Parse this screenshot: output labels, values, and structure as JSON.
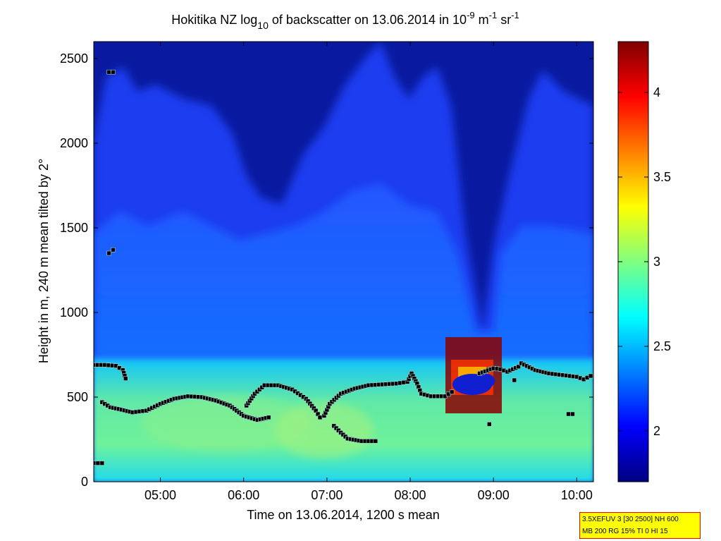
{
  "chart_data": {
    "type": "heatmap",
    "title": {
      "part1": "Hokitika NZ log",
      "sub": "10",
      "part2": " of backscatter on 13.06.2014 in 10",
      "sup1": "-9",
      "part3": " m",
      "sup2": "-1",
      "part4": " sr",
      "sup3": "-1"
    },
    "xlabel": "Time on 13.06.2014, 1200 s mean",
    "ylabel": "Height in m, 240 m mean tilted by 2°",
    "x_ticks": [
      "05:00",
      "06:00",
      "07:00",
      "08:00",
      "09:00",
      "10:00"
    ],
    "y_ticks": [
      "0",
      "500",
      "1000",
      "1500",
      "2000",
      "2500"
    ],
    "xlim": [
      "04:12",
      "10:12"
    ],
    "ylim": [
      0,
      2600
    ],
    "colorbar": {
      "ticks": [
        "2",
        "2.5",
        "3",
        "3.5",
        "4"
      ],
      "range": [
        1.7,
        4.3
      ],
      "colormap": "jet"
    },
    "annotations": [
      "3.5XEFUV 3 [30 2500] NH 600",
      "MB 200 RG 15% TI 0 HI 15"
    ],
    "series": [
      {
        "marker": "square",
        "points": [
          [
            "04:12",
            690
          ],
          [
            "04:20",
            690
          ],
          [
            "04:28",
            685
          ],
          [
            "04:33",
            660
          ],
          [
            "04:35",
            610
          ],
          [
            "04:18",
            470
          ],
          [
            "04:24",
            440
          ],
          [
            "04:30",
            430
          ],
          [
            "04:40",
            410
          ],
          [
            "04:50",
            420
          ],
          [
            "05:00",
            460
          ],
          [
            "05:10",
            490
          ],
          [
            "05:20",
            505
          ],
          [
            "05:30",
            500
          ],
          [
            "05:40",
            480
          ],
          [
            "05:50",
            450
          ],
          [
            "06:00",
            390
          ],
          [
            "06:10",
            365
          ],
          [
            "06:18",
            380
          ],
          [
            "06:02",
            450
          ],
          [
            "06:08",
            520
          ],
          [
            "06:15",
            570
          ],
          [
            "06:25",
            570
          ],
          [
            "06:35",
            545
          ],
          [
            "06:45",
            490
          ],
          [
            "06:52",
            420
          ],
          [
            "06:55",
            380
          ],
          [
            "06:58",
            390
          ],
          [
            "07:02",
            460
          ],
          [
            "07:10",
            520
          ],
          [
            "07:20",
            550
          ],
          [
            "07:30",
            570
          ],
          [
            "07:40",
            575
          ],
          [
            "07:50",
            580
          ],
          [
            "07:58",
            590
          ],
          [
            "08:01",
            640
          ],
          [
            "08:05",
            580
          ],
          [
            "08:08",
            520
          ],
          [
            "08:15",
            505
          ],
          [
            "08:25",
            505
          ],
          [
            "08:30",
            530
          ],
          [
            "07:05",
            330
          ],
          [
            "07:10",
            290
          ],
          [
            "07:15",
            255
          ],
          [
            "07:25",
            240
          ],
          [
            "07:35",
            240
          ],
          [
            "08:50",
            640
          ],
          [
            "09:00",
            670
          ],
          [
            "09:05",
            665
          ],
          [
            "09:10",
            650
          ],
          [
            "09:18",
            680
          ],
          [
            "09:20",
            700
          ],
          [
            "09:30",
            660
          ],
          [
            "09:40",
            640
          ],
          [
            "09:50",
            630
          ],
          [
            "10:00",
            620
          ],
          [
            "10:05",
            605
          ],
          [
            "10:10",
            625
          ],
          [
            "04:12",
            110
          ],
          [
            "04:18",
            110
          ],
          [
            "04:23",
            2420
          ],
          [
            "04:26",
            2420
          ],
          [
            "04:23",
            1350
          ],
          [
            "04:26",
            1370
          ],
          [
            "08:57",
            340
          ],
          [
            "09:15",
            600
          ],
          [
            "09:54",
            400
          ],
          [
            "09:57",
            400
          ]
        ]
      }
    ]
  }
}
